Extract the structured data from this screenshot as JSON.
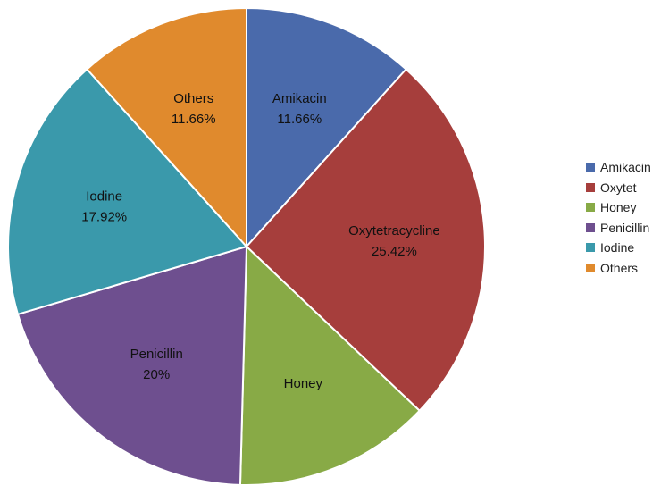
{
  "chart_data": {
    "type": "pie",
    "slices": [
      {
        "legend": "Amikacin",
        "color": "#4a6aab",
        "value": 11.66,
        "label_lines": [
          "Amikacin",
          "11.66%"
        ]
      },
      {
        "legend": "Oxytet",
        "color": "#a63e3c",
        "value": 25.42,
        "label_lines": [
          "Oxytetracycline",
          "25.42%"
        ]
      },
      {
        "legend": "Honey",
        "color": "#88aa46",
        "value": 13.34,
        "label_lines": [
          "Honey"
        ]
      },
      {
        "legend": "Penicillin",
        "color": "#6e4f8f",
        "value": 20.0,
        "label_lines": [
          "Penicillin",
          "20%"
        ]
      },
      {
        "legend": "Iodine",
        "color": "#3a99ab",
        "value": 17.92,
        "label_lines": [
          "Iodine",
          "17.92%"
        ]
      },
      {
        "legend": "Others",
        "color": "#e08a2d",
        "value": 11.66,
        "label_lines": [
          "Others",
          "11.66%"
        ]
      }
    ],
    "legend_position": "right"
  }
}
